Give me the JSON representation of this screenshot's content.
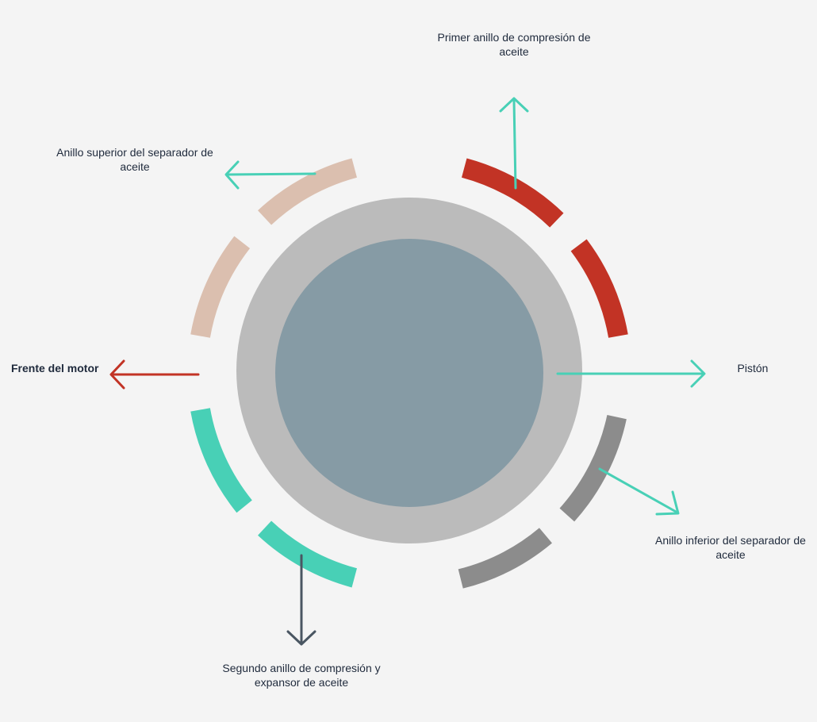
{
  "labels": {
    "first_compression_ring": "Primer anillo de compresión de aceite",
    "upper_separator_ring": "Anillo superior del separador de aceite",
    "engine_front": "Frente del motor",
    "piston": "Pistón",
    "lower_separator_ring": "Anillo inferior del separador de aceite",
    "second_compression_ring": "Segundo anillo de compresión y expansor de aceite"
  },
  "colors": {
    "background": "#f4f4f4",
    "piston_outer": "#bbbbbb",
    "piston_inner": "#869ba5",
    "first_ring": "#c23325",
    "upper_ring": "#dbbfaf",
    "second_ring": "#48d0b6",
    "lower_ring": "#8c8c8c",
    "arrow_teal": "#48d0b6",
    "arrow_red": "#c23325",
    "arrow_dark": "#4a5662"
  }
}
